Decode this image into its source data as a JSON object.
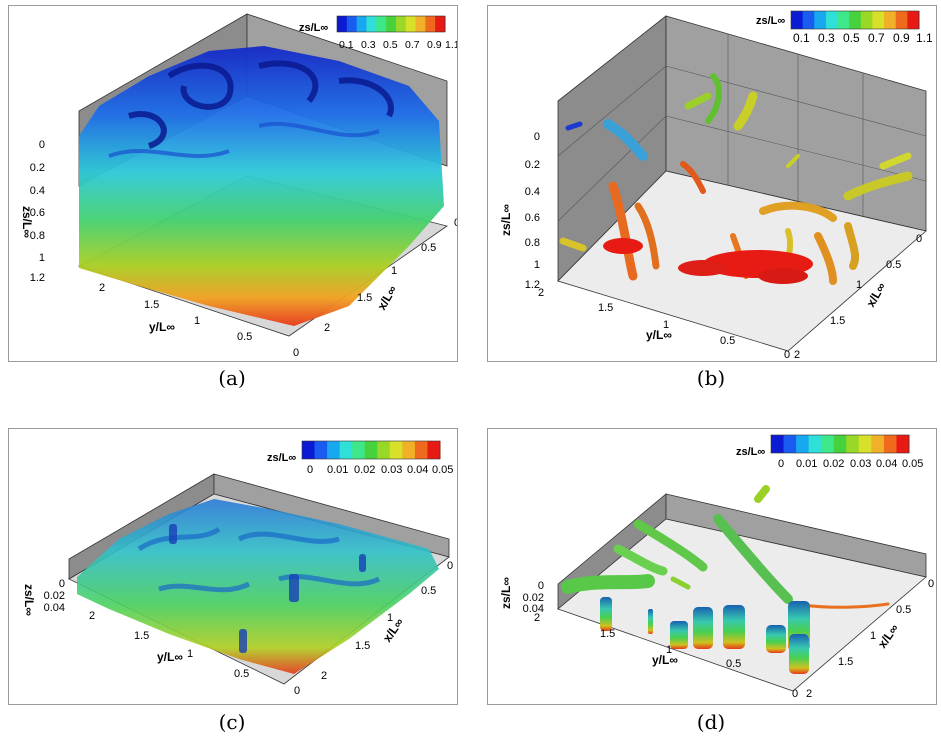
{
  "figure": {
    "panels": [
      {
        "id": "a",
        "caption": "(a)",
        "colorbar": {
          "title": "zs/L∞",
          "ticks": [
            "0.1",
            "0.3",
            "0.5",
            "0.7",
            "0.9",
            "1.1"
          ]
        },
        "axes": {
          "z_label": "zs/L∞",
          "z_ticks": [
            "0",
            "0.2",
            "0.4",
            "0.6",
            "0.8",
            "1",
            "1.2"
          ],
          "y_label": "y/L∞",
          "y_ticks": [
            "2",
            "1.5",
            "1",
            "0.5",
            "0"
          ],
          "x_label": "x/L∞",
          "x_ticks": [
            "0",
            "0.5",
            "1",
            "1.5",
            "2"
          ]
        }
      },
      {
        "id": "b",
        "caption": "(b)",
        "colorbar": {
          "title": "zs/L∞",
          "ticks": [
            "0.1",
            "0.3",
            "0.5",
            "0.7",
            "0.9",
            "1.1"
          ]
        },
        "axes": {
          "z_label": "zs/L∞",
          "z_ticks": [
            "0",
            "0.2",
            "0.4",
            "0.6",
            "0.8",
            "1",
            "1.2"
          ],
          "y_label": "y/L∞",
          "y_ticks": [
            "2",
            "1.5",
            "1",
            "0.5",
            "0"
          ],
          "x_label": "x/L∞",
          "x_ticks": [
            "0",
            "0.5",
            "1",
            "1.5",
            "2"
          ]
        }
      },
      {
        "id": "c",
        "caption": "(c)",
        "colorbar": {
          "title": "zs/L∞",
          "ticks": [
            "0",
            "0.01",
            "0.02",
            "0.03",
            "0.04",
            "0.05"
          ]
        },
        "axes": {
          "z_label": "zs/L∞",
          "z_ticks": [
            "0",
            "0.02",
            "0.04"
          ],
          "y_label": "y/L∞",
          "y_ticks": [
            "2",
            "1.5",
            "1",
            "0.5",
            "0"
          ],
          "x_label": "x/L∞",
          "x_ticks": [
            "0",
            "0.5",
            "1",
            "1.5",
            "2"
          ]
        }
      },
      {
        "id": "d",
        "caption": "(d)",
        "colorbar": {
          "title": "zs/L∞",
          "ticks": [
            "0",
            "0.01",
            "0.02",
            "0.03",
            "0.04",
            "0.05"
          ]
        },
        "axes": {
          "z_label": "zs/L∞",
          "z_ticks": [
            "0",
            "0.02",
            "0.04"
          ],
          "y_label": "y/L∞",
          "y_ticks": [
            "2",
            "1.5",
            "1",
            "0.5",
            "0"
          ],
          "x_label": "x/L∞",
          "x_ticks": [
            "0",
            "0.5",
            "1",
            "1.5",
            "2"
          ]
        }
      }
    ],
    "colormap": [
      "#0b1bd4",
      "#1a5cf0",
      "#18a8f0",
      "#2ee0d8",
      "#3ee88a",
      "#46d23c",
      "#9ad828",
      "#d8e02a",
      "#f0b028",
      "#f06a1e",
      "#e81a14"
    ]
  }
}
